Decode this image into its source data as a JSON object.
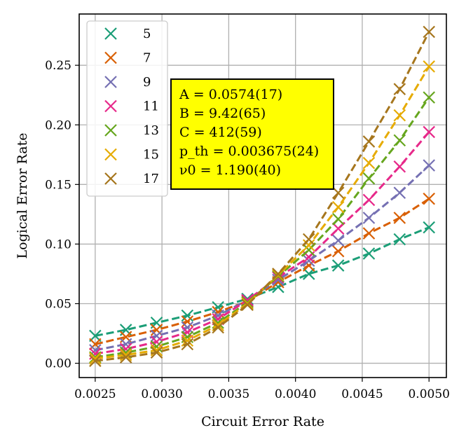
{
  "chart_data": {
    "type": "scatter",
    "xlabel": "Circuit Error Rate",
    "ylabel": "Logical Error Rate",
    "xlim": [
      0.00238,
      0.00513
    ],
    "ylim": [
      -0.012,
      0.293
    ],
    "xticks": [
      0.0025,
      0.003,
      0.0035,
      0.004,
      0.0045,
      0.005
    ],
    "xtick_labels": [
      "0.0025",
      "0.0030",
      "0.0035",
      "0.0040",
      "0.0045",
      "0.0050"
    ],
    "yticks": [
      0.0,
      0.05,
      0.1,
      0.15,
      0.2,
      0.25
    ],
    "ytick_labels": [
      "0.00",
      "0.05",
      "0.10",
      "0.15",
      "0.20",
      "0.25"
    ],
    "grid": true,
    "legend_position": "top-left",
    "x": [
      0.0025,
      0.00273,
      0.00296,
      0.00319,
      0.00342,
      0.00364,
      0.00387,
      0.0041,
      0.00432,
      0.00455,
      0.00478,
      0.005
    ],
    "series": [
      {
        "name": "5",
        "color": "#1b9e77",
        "values": [
          0.023,
          0.028,
          0.034,
          0.04,
          0.047,
          0.054,
          0.064,
          0.075,
          0.082,
          0.092,
          0.104,
          0.114
        ]
      },
      {
        "name": "7",
        "color": "#d95f02",
        "values": [
          0.016,
          0.022,
          0.028,
          0.035,
          0.043,
          0.052,
          0.068,
          0.082,
          0.094,
          0.109,
          0.122,
          0.138
        ]
      },
      {
        "name": "9",
        "color": "#7570b3",
        "values": [
          0.011,
          0.016,
          0.023,
          0.03,
          0.04,
          0.053,
          0.07,
          0.086,
          0.103,
          0.122,
          0.143,
          0.166
        ]
      },
      {
        "name": "11",
        "color": "#e7298a",
        "values": [
          0.008,
          0.012,
          0.018,
          0.026,
          0.037,
          0.053,
          0.072,
          0.089,
          0.113,
          0.137,
          0.165,
          0.194
        ]
      },
      {
        "name": "13",
        "color": "#66a61e",
        "values": [
          0.005,
          0.009,
          0.014,
          0.022,
          0.034,
          0.051,
          0.073,
          0.095,
          0.121,
          0.155,
          0.187,
          0.223
        ]
      },
      {
        "name": "15",
        "color": "#e6ab02",
        "values": [
          0.004,
          0.007,
          0.011,
          0.019,
          0.032,
          0.05,
          0.074,
          0.099,
          0.131,
          0.168,
          0.208,
          0.249
        ]
      },
      {
        "name": "17",
        "color": "#a6761d",
        "values": [
          0.002,
          0.005,
          0.009,
          0.016,
          0.03,
          0.049,
          0.075,
          0.104,
          0.143,
          0.186,
          0.23,
          0.278
        ]
      }
    ],
    "fit_box": {
      "lines": [
        "A = 0.0574(17)",
        "B = 9.42(65)",
        "C = 412(59)",
        "p_th = 0.003675(24)",
        "ν0 = 1.190(40)"
      ],
      "background": "#ffff00"
    }
  }
}
